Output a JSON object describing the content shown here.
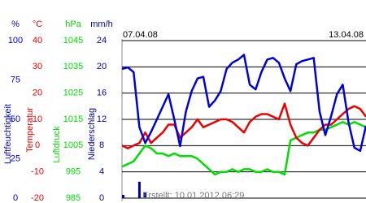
{
  "chart_data": {
    "type": "line",
    "categories": [
      "07.04.08",
      null,
      null,
      null,
      null,
      null,
      null,
      null,
      null,
      null,
      null,
      null,
      null,
      null,
      null,
      null,
      null,
      null,
      null,
      null,
      null,
      null,
      null,
      null,
      null,
      null,
      null,
      null,
      null,
      null,
      null,
      null,
      null,
      null,
      null,
      null,
      null,
      null,
      null,
      null,
      null,
      null,
      "13.04.08"
    ],
    "note": "Erstellt: 10.01.2012 06:29",
    "series": [
      {
        "name": "Luftfeuchtigkeit",
        "unit": "%",
        "color": "#0000dd",
        "type": "line",
        "ylim": [
          0,
          100
        ],
        "yticks": [
          100,
          75,
          50,
          25,
          0
        ],
        "values": [
          82,
          83,
          80,
          45,
          35,
          42,
          50,
          58,
          66,
          50,
          33,
          55,
          68,
          76,
          77,
          58,
          62,
          68,
          82,
          86,
          88,
          91,
          72,
          69,
          80,
          88,
          89,
          86,
          76,
          68,
          85,
          87,
          88,
          89,
          55,
          40,
          52,
          66,
          72,
          48,
          32,
          30,
          46
        ]
      },
      {
        "name": "Temperatur",
        "unit": "°C",
        "color": "#ee0000",
        "type": "line",
        "ylim": [
          -20,
          40
        ],
        "yticks": [
          40,
          30,
          20,
          10,
          0,
          -10,
          -20
        ],
        "values": [
          0,
          -1,
          0,
          1,
          5,
          1,
          3,
          5,
          8,
          8,
          3,
          5,
          7,
          10,
          7,
          8,
          9,
          10,
          10,
          9,
          7,
          5,
          9,
          11,
          12,
          12,
          11,
          10,
          16,
          8,
          3,
          1,
          0,
          3,
          6,
          8,
          8,
          10,
          12,
          14,
          15,
          14,
          11
        ]
      },
      {
        "name": "Luftdruck",
        "unit": "hPa",
        "color": "#00dd00",
        "type": "line",
        "ylim": [
          985,
          1045
        ],
        "yticks": [
          1045,
          1035,
          1025,
          1015,
          1005,
          995,
          985
        ],
        "values": [
          997,
          998,
          999,
          1002,
          1005,
          1004,
          1002,
          1002,
          1001,
          1002,
          1001,
          1001,
          1001,
          1000,
          998,
          996,
          994,
          995,
          995,
          996,
          995,
          996,
          996,
          995,
          995,
          996,
          995,
          995,
          994,
          1007,
          1008,
          1009,
          1010,
          1010,
          1011,
          1011,
          1012,
          1013,
          1014,
          1013,
          1014,
          1013,
          1012
        ]
      },
      {
        "name": "Niederschlag",
        "unit": "mm/h",
        "color": "#0000aa",
        "type": "bar",
        "ylim": [
          0,
          24
        ],
        "yticks": [
          24,
          20,
          16,
          12,
          8,
          4,
          0
        ],
        "values": [
          0.5,
          0,
          0,
          2.5,
          0.8,
          0,
          0,
          0,
          0,
          0,
          0,
          0,
          0,
          0,
          0,
          0,
          0,
          0,
          0,
          0,
          0,
          0,
          0,
          0,
          0,
          0,
          0,
          0,
          0,
          0,
          0,
          0,
          0,
          0,
          0,
          0,
          0,
          0,
          0,
          0,
          0,
          0,
          0
        ]
      }
    ]
  }
}
